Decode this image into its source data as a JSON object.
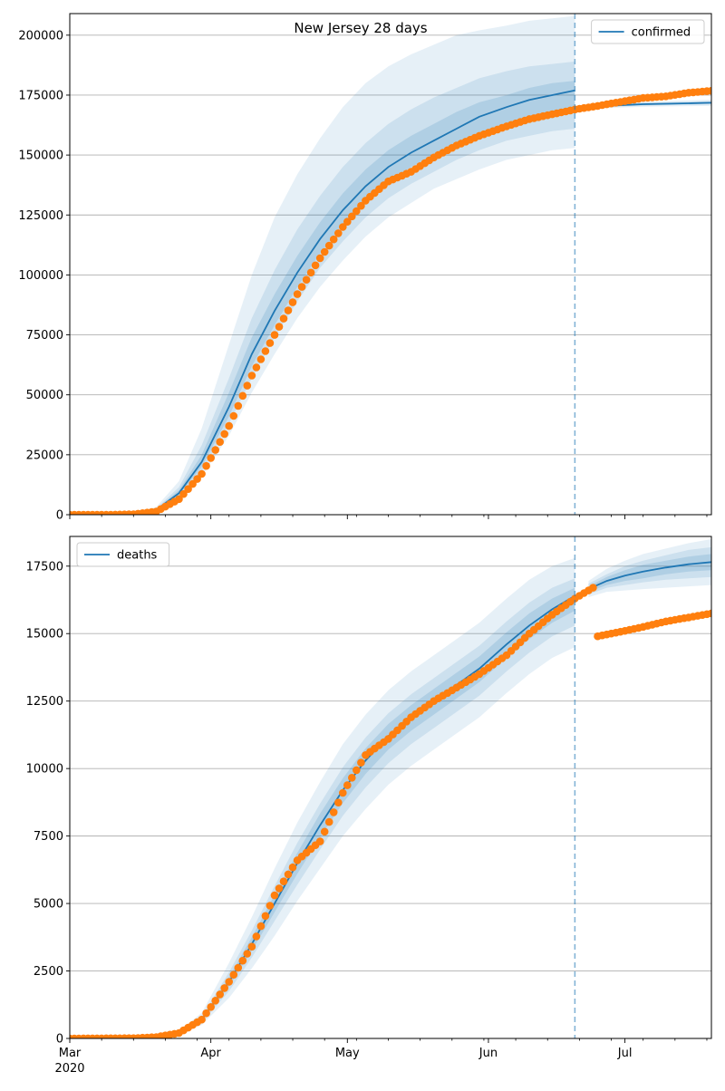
{
  "figure": {
    "title": "New Jersey 28 days"
  },
  "chart_data": [
    {
      "type": "line",
      "title": "New Jersey 28 days",
      "xlabel": "",
      "ylabel": "",
      "x_axis": {
        "type": "date",
        "range": [
          "2020-03-01",
          "2020-07-20"
        ],
        "major_ticks": [
          {
            "date": "2020-03-01",
            "label": "Mar",
            "sublabel": "2020"
          },
          {
            "date": "2020-04-01",
            "label": "Apr"
          },
          {
            "date": "2020-05-01",
            "label": "May"
          },
          {
            "date": "2020-06-01",
            "label": "Jun"
          },
          {
            "date": "2020-07-01",
            "label": "Jul"
          }
        ]
      },
      "ylim": [
        0,
        209000
      ],
      "yticks": [
        0,
        25000,
        50000,
        75000,
        100000,
        125000,
        150000,
        175000,
        200000
      ],
      "grid": "horizontal",
      "legend": {
        "position": "top-right",
        "entries": [
          "confirmed"
        ]
      },
      "forecast_start": "2020-06-20",
      "colors": {
        "model": "#1f77b4",
        "observed": "#ff7f0e",
        "band": "#1f77b4"
      },
      "series": [
        {
          "name": "confirmed",
          "kind": "model",
          "x": [
            "2020-03-01",
            "2020-03-15",
            "2020-03-20",
            "2020-03-25",
            "2020-03-30",
            "2020-04-05",
            "2020-04-10",
            "2020-04-15",
            "2020-04-20",
            "2020-04-25",
            "2020-04-30",
            "2020-05-05",
            "2020-05-10",
            "2020-05-15",
            "2020-05-20",
            "2020-05-25",
            "2020-05-30",
            "2020-06-05",
            "2020-06-10",
            "2020-06-15",
            "2020-06-20"
          ],
          "y": [
            0,
            200,
            2000,
            9000,
            22000,
            45000,
            67000,
            85000,
            101000,
            115000,
            127000,
            137000,
            145000,
            151000,
            156000,
            161000,
            166000,
            170000,
            173000,
            175000,
            177000
          ]
        },
        {
          "name": "confirmed forecast",
          "kind": "model",
          "x": [
            "2020-06-20",
            "2020-06-25",
            "2020-07-01",
            "2020-07-05",
            "2020-07-10",
            "2020-07-15",
            "2020-07-20"
          ],
          "y": [
            169500,
            170300,
            170900,
            171200,
            171400,
            171600,
            171800
          ]
        },
        {
          "name": "confirmed observed",
          "kind": "observed",
          "x": [
            "2020-03-01",
            "2020-03-10",
            "2020-03-15",
            "2020-03-20",
            "2020-03-25",
            "2020-03-30",
            "2020-04-05",
            "2020-04-10",
            "2020-04-15",
            "2020-04-20",
            "2020-04-25",
            "2020-04-30",
            "2020-05-05",
            "2020-05-10",
            "2020-05-15",
            "2020-05-20",
            "2020-05-25",
            "2020-05-30",
            "2020-06-05",
            "2020-06-10",
            "2020-06-15",
            "2020-06-20",
            "2020-06-25",
            "2020-07-01",
            "2020-07-05",
            "2020-07-10",
            "2020-07-15",
            "2020-07-20"
          ],
          "y": [
            0,
            0,
            200,
            1300,
            6500,
            17000,
            37000,
            58000,
            75000,
            92000,
            107000,
            120000,
            131000,
            139000,
            143000,
            149000,
            154000,
            158000,
            162000,
            165000,
            167000,
            169000,
            170500,
            172500,
            173800,
            174500,
            176000,
            176800
          ]
        },
        {
          "name": "confirmed uncertainty",
          "kind": "bands",
          "x": [
            "2020-03-01",
            "2020-03-15",
            "2020-03-20",
            "2020-03-25",
            "2020-03-30",
            "2020-04-05",
            "2020-04-10",
            "2020-04-15",
            "2020-04-20",
            "2020-04-25",
            "2020-04-30",
            "2020-05-05",
            "2020-05-10",
            "2020-05-15",
            "2020-05-20",
            "2020-05-25",
            "2020-05-30",
            "2020-06-05",
            "2020-06-10",
            "2020-06-15",
            "2020-06-20"
          ],
          "low": [
            [
              0,
              150,
              1500,
              6500,
              16000,
              33000,
              51000,
              67000,
              82000,
              95000,
              106000,
              116000,
              124000,
              130000,
              136000,
              140000,
              144000,
              148000,
              150000,
              152000,
              153000
            ],
            [
              0,
              170,
              1700,
              7500,
              18000,
              38000,
              57000,
              74000,
              89000,
              103000,
              114000,
              124000,
              132000,
              138000,
              143000,
              148000,
              152000,
              156000,
              158000,
              160000,
              161000
            ],
            [
              0,
              185,
              1850,
              8200,
              20000,
              41000,
              62000,
              79000,
              95000,
              109000,
              121000,
              131000,
              139000,
              145000,
              150000,
              155000,
              159000,
              163000,
              166000,
              168000,
              169000
            ]
          ],
          "high": [
            [
              0,
              280,
              3200,
              14000,
              36000,
              71000,
              100000,
              124000,
              142000,
              157000,
              170000,
              180000,
              187000,
              192000,
              196000,
              200000,
              202000,
              204000,
              206000,
              207000,
              208000
            ],
            [
              0,
              240,
              2600,
              11500,
              29000,
              57000,
              82000,
              102000,
              119000,
              133000,
              145000,
              155000,
              163000,
              169000,
              174000,
              178000,
              182000,
              185000,
              187000,
              188000,
              189000
            ],
            [
              0,
              220,
              2300,
              10200,
              25000,
              51000,
              74000,
              92000,
              108000,
              122000,
              134000,
              144000,
              152000,
              158000,
              163000,
              168000,
              172000,
              175000,
              178000,
              180000,
              181000
            ]
          ]
        },
        {
          "name": "confirmed forecast uncertainty",
          "kind": "bands",
          "x": [
            "2020-06-20",
            "2020-06-25",
            "2020-07-01",
            "2020-07-05",
            "2020-07-10",
            "2020-07-15",
            "2020-07-20"
          ],
          "low": [
            [
              168800,
              169400,
              169900,
              170100,
              170300,
              170400,
              170500
            ],
            [
              169100,
              169800,
              170300,
              170600,
              170800,
              171000,
              171100
            ],
            [
              169300,
              170050,
              170600,
              170900,
              171100,
              171300,
              171450
            ]
          ],
          "high": [
            [
              170200,
              171200,
              171900,
              172300,
              172500,
              172800,
              173100
            ],
            [
              169900,
              170800,
              171500,
              171800,
              172000,
              172200,
              172500
            ],
            [
              169700,
              170550,
              171200,
              171500,
              171700,
              171900,
              172150
            ]
          ]
        }
      ]
    },
    {
      "type": "line",
      "title": "",
      "xlabel": "",
      "ylabel": "",
      "x_axis": {
        "type": "date",
        "range": [
          "2020-03-01",
          "2020-07-20"
        ],
        "major_ticks": [
          {
            "date": "2020-03-01",
            "label": "Mar",
            "sublabel": "2020"
          },
          {
            "date": "2020-04-01",
            "label": "Apr"
          },
          {
            "date": "2020-05-01",
            "label": "May"
          },
          {
            "date": "2020-06-01",
            "label": "Jun"
          },
          {
            "date": "2020-07-01",
            "label": "Jul"
          }
        ]
      },
      "ylim": [
        0,
        18600
      ],
      "yticks": [
        0,
        2500,
        5000,
        7500,
        10000,
        12500,
        15000,
        17500
      ],
      "grid": "horizontal",
      "legend": {
        "position": "top-left",
        "entries": [
          "deaths"
        ]
      },
      "forecast_start": "2020-06-20",
      "colors": {
        "model": "#1f77b4",
        "observed": "#ff7f0e",
        "band": "#1f77b4"
      },
      "series": [
        {
          "name": "deaths",
          "kind": "model",
          "x": [
            "2020-03-01",
            "2020-03-20",
            "2020-03-25",
            "2020-03-30",
            "2020-04-05",
            "2020-04-10",
            "2020-04-15",
            "2020-04-20",
            "2020-04-25",
            "2020-04-30",
            "2020-05-05",
            "2020-05-10",
            "2020-05-15",
            "2020-05-20",
            "2020-05-25",
            "2020-05-30",
            "2020-06-05",
            "2020-06-10",
            "2020-06-15",
            "2020-06-20"
          ],
          "y": [
            0,
            50,
            200,
            700,
            2100,
            3500,
            5000,
            6500,
            7900,
            9200,
            10300,
            11200,
            11900,
            12500,
            13100,
            13700,
            14600,
            15300,
            15900,
            16400
          ]
        },
        {
          "name": "deaths forecast",
          "kind": "model",
          "x": [
            "2020-06-23",
            "2020-06-27",
            "2020-07-01",
            "2020-07-05",
            "2020-07-10",
            "2020-07-15",
            "2020-07-20"
          ],
          "y": [
            16650,
            16950,
            17150,
            17300,
            17450,
            17570,
            17650
          ]
        },
        {
          "name": "deaths observed",
          "kind": "observed",
          "x": [
            "2020-03-01",
            "2020-03-15",
            "2020-03-20",
            "2020-03-25",
            "2020-03-30",
            "2020-04-05",
            "2020-04-10",
            "2020-04-15",
            "2020-04-20",
            "2020-04-25",
            "2020-04-30",
            "2020-05-05",
            "2020-05-10",
            "2020-05-15",
            "2020-05-20",
            "2020-05-25",
            "2020-05-30",
            "2020-06-05",
            "2020-06-10",
            "2020-06-15",
            "2020-06-20",
            "2020-06-24"
          ],
          "y": [
            0,
            10,
            50,
            200,
            700,
            2100,
            3400,
            5300,
            6600,
            7300,
            9100,
            10500,
            11100,
            11900,
            12500,
            13000,
            13500,
            14200,
            15000,
            15700,
            16300,
            16700
          ]
        },
        {
          "name": "deaths observed (revised)",
          "kind": "observed",
          "x": [
            "2020-06-25",
            "2020-07-01",
            "2020-07-05",
            "2020-07-10",
            "2020-07-15",
            "2020-07-20"
          ],
          "y": [
            14900,
            15100,
            15250,
            15450,
            15600,
            15750
          ]
        },
        {
          "name": "deaths uncertainty",
          "kind": "bands",
          "x": [
            "2020-03-01",
            "2020-03-20",
            "2020-03-25",
            "2020-03-30",
            "2020-04-05",
            "2020-04-10",
            "2020-04-15",
            "2020-04-20",
            "2020-04-25",
            "2020-04-30",
            "2020-05-05",
            "2020-05-10",
            "2020-05-15",
            "2020-05-20",
            "2020-05-25",
            "2020-05-30",
            "2020-06-05",
            "2020-06-10",
            "2020-06-15",
            "2020-06-20"
          ],
          "low": [
            [
              0,
              40,
              150,
              500,
              1500,
              2600,
              3800,
              5100,
              6300,
              7500,
              8500,
              9400,
              10100,
              10700,
              11300,
              11900,
              12800,
              13500,
              14100,
              14500
            ],
            [
              0,
              45,
              170,
              580,
              1750,
              3000,
              4350,
              5700,
              7000,
              8250,
              9300,
              10200,
              10900,
              11500,
              12100,
              12700,
              13600,
              14300,
              14900,
              15300
            ],
            [
              0,
              48,
              185,
              640,
              1930,
              3250,
              4680,
              6100,
              7450,
              8720,
              9800,
              10700,
              11400,
              12000,
              12600,
              13200,
              14100,
              14800,
              15400,
              15850
            ]
          ],
          "high": [
            [
              0,
              70,
              280,
              950,
              2800,
              4500,
              6300,
              8000,
              9500,
              10900,
              12000,
              12900,
              13600,
              14200,
              14800,
              15400,
              16300,
              17000,
              17500,
              17800
            ],
            [
              0,
              60,
              240,
              820,
              2450,
              4000,
              5650,
              7250,
              8700,
              10050,
              11150,
              12050,
              12750,
              13350,
              13950,
              14550,
              15450,
              16150,
              16700,
              17050
            ],
            [
              0,
              55,
              215,
              760,
              2270,
              3750,
              5320,
              6880,
              8330,
              9640,
              10750,
              11650,
              12350,
              12950,
              13550,
              14150,
              15050,
              15750,
              16300,
              16700
            ]
          ]
        },
        {
          "name": "deaths forecast uncertainty",
          "kind": "bands",
          "x": [
            "2020-06-23",
            "2020-06-27",
            "2020-07-01",
            "2020-07-05",
            "2020-07-10",
            "2020-07-15",
            "2020-07-20"
          ],
          "low": [
            [
              16350,
              16550,
              16600,
              16650,
              16700,
              16750,
              16800
            ],
            [
              16450,
              16700,
              16800,
              16900,
              17000,
              17050,
              17100
            ],
            [
              16550,
              16800,
              16950,
              17050,
              17200,
              17300,
              17350
            ]
          ],
          "high": [
            [
              16950,
              17400,
              17700,
              17950,
              18150,
              18350,
              18500
            ],
            [
              16850,
              17200,
              17500,
              17700,
              17900,
              18100,
              18200
            ],
            [
              16750,
              17100,
              17350,
              17550,
              17700,
              17850,
              17950
            ]
          ]
        }
      ]
    }
  ]
}
